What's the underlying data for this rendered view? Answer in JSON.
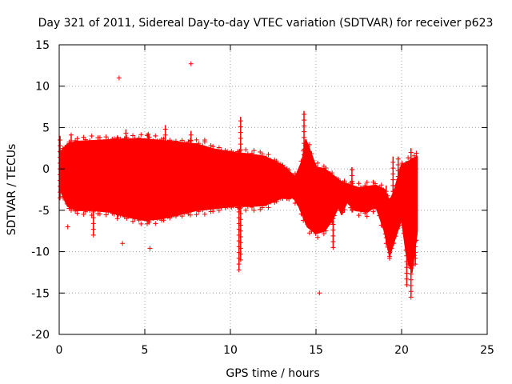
{
  "chart_data": {
    "type": "scatter",
    "title": "Day 321 of 2011, Sidereal Day-to-day VTEC variation (SDTVAR) for receiver p623",
    "xlabel": "GPS time / hours",
    "ylabel": "SDTVAR / TECUs",
    "xlim": [
      0,
      25
    ],
    "ylim": [
      -20,
      15
    ],
    "xticks": [
      "0",
      "5",
      "10",
      "15",
      "20",
      "25"
    ],
    "yticks": [
      "15",
      "10",
      "5",
      "0",
      "-5",
      "-10",
      "-15",
      "-20"
    ],
    "grid": true,
    "marker": "+",
    "color": "#ff0000",
    "series": [
      {
        "name": "SDTVAR",
        "band_upper": [
          [
            0.05,
            2.0
          ],
          [
            0.5,
            3.0
          ],
          [
            1,
            3.3
          ],
          [
            2,
            3.4
          ],
          [
            3,
            3.5
          ],
          [
            4,
            3.6
          ],
          [
            5,
            3.6
          ],
          [
            6,
            3.4
          ],
          [
            7,
            3.2
          ],
          [
            8,
            3.0
          ],
          [
            9,
            2.4
          ],
          [
            10,
            2.0
          ],
          [
            11,
            1.8
          ],
          [
            12,
            1.5
          ],
          [
            13,
            0.5
          ],
          [
            13.8,
            -1.0
          ],
          [
            14.2,
            1.0
          ],
          [
            14.4,
            3.5
          ],
          [
            14.6,
            2.5
          ],
          [
            15,
            0.2
          ],
          [
            15.5,
            0.0
          ],
          [
            16,
            -0.8
          ],
          [
            16.4,
            -1.5
          ],
          [
            16.8,
            -1.8
          ],
          [
            17.5,
            -2.3
          ],
          [
            18.5,
            -2.0
          ],
          [
            19,
            -2.5
          ],
          [
            19.3,
            -4.0
          ],
          [
            19.6,
            -2.5
          ],
          [
            20.0,
            0.5
          ],
          [
            20.5,
            1.0
          ],
          [
            20.9,
            1.5
          ]
        ],
        "band_lower": [
          [
            0.05,
            -2.5
          ],
          [
            0.5,
            -4.5
          ],
          [
            1,
            -5.0
          ],
          [
            2,
            -5.0
          ],
          [
            3,
            -5.2
          ],
          [
            4,
            -5.8
          ],
          [
            5,
            -6.2
          ],
          [
            6,
            -6.0
          ],
          [
            7,
            -5.5
          ],
          [
            8,
            -5.0
          ],
          [
            9,
            -4.8
          ],
          [
            10,
            -4.5
          ],
          [
            11,
            -4.5
          ],
          [
            12,
            -4.4
          ],
          [
            13,
            -3.5
          ],
          [
            13.7,
            -3.5
          ],
          [
            14.0,
            -4.5
          ],
          [
            14.5,
            -7.0
          ],
          [
            15,
            -7.8
          ],
          [
            15.5,
            -7.5
          ],
          [
            16.0,
            -6.0
          ],
          [
            16.3,
            -4.5
          ],
          [
            16.5,
            -5.5
          ],
          [
            16.8,
            -4.0
          ],
          [
            17.3,
            -5.0
          ],
          [
            18.0,
            -5.2
          ],
          [
            18.5,
            -4.5
          ],
          [
            19.0,
            -7.5
          ],
          [
            19.3,
            -10.5
          ],
          [
            19.6,
            -8.5
          ],
          [
            20.0,
            -6.0
          ],
          [
            20.3,
            -10.5
          ],
          [
            20.6,
            -12.5
          ],
          [
            20.9,
            -7.5
          ]
        ],
        "spikes": [
          [
            0.05,
            4.0,
            -3.5
          ],
          [
            0.7,
            4.2,
            -5.0
          ],
          [
            2.0,
            3.0,
            -8.0
          ],
          [
            3.4,
            4.0,
            -6.0
          ],
          [
            3.9,
            4.8,
            -5.5
          ],
          [
            5.2,
            4.3,
            -6.3
          ],
          [
            6.2,
            5.3,
            -5.0
          ],
          [
            7.7,
            4.6,
            -5.0
          ],
          [
            10.5,
            2.2,
            -12.2
          ],
          [
            10.6,
            6.3,
            -11.0
          ],
          [
            14.3,
            7.0,
            -2.5
          ],
          [
            16.0,
            -1.5,
            -9.5
          ],
          [
            17.1,
            0.2,
            -5.0
          ],
          [
            19.1,
            -2.0,
            -9.0
          ],
          [
            19.3,
            -3.8,
            -10.8
          ],
          [
            19.5,
            1.5,
            -9.0
          ],
          [
            19.8,
            1.5,
            -6.5
          ],
          [
            20.3,
            -0.5,
            -14.0
          ],
          [
            20.55,
            2.5,
            -15.5
          ],
          [
            20.8,
            1.2,
            -11.5
          ]
        ],
        "outliers": [
          [
            0.5,
            -7.0
          ],
          [
            3.5,
            11.0
          ],
          [
            3.7,
            -9.0
          ],
          [
            5.3,
            -9.6
          ],
          [
            7.7,
            12.7
          ],
          [
            8.5,
            3.5
          ],
          [
            15.2,
            -15.0
          ]
        ]
      }
    ]
  }
}
